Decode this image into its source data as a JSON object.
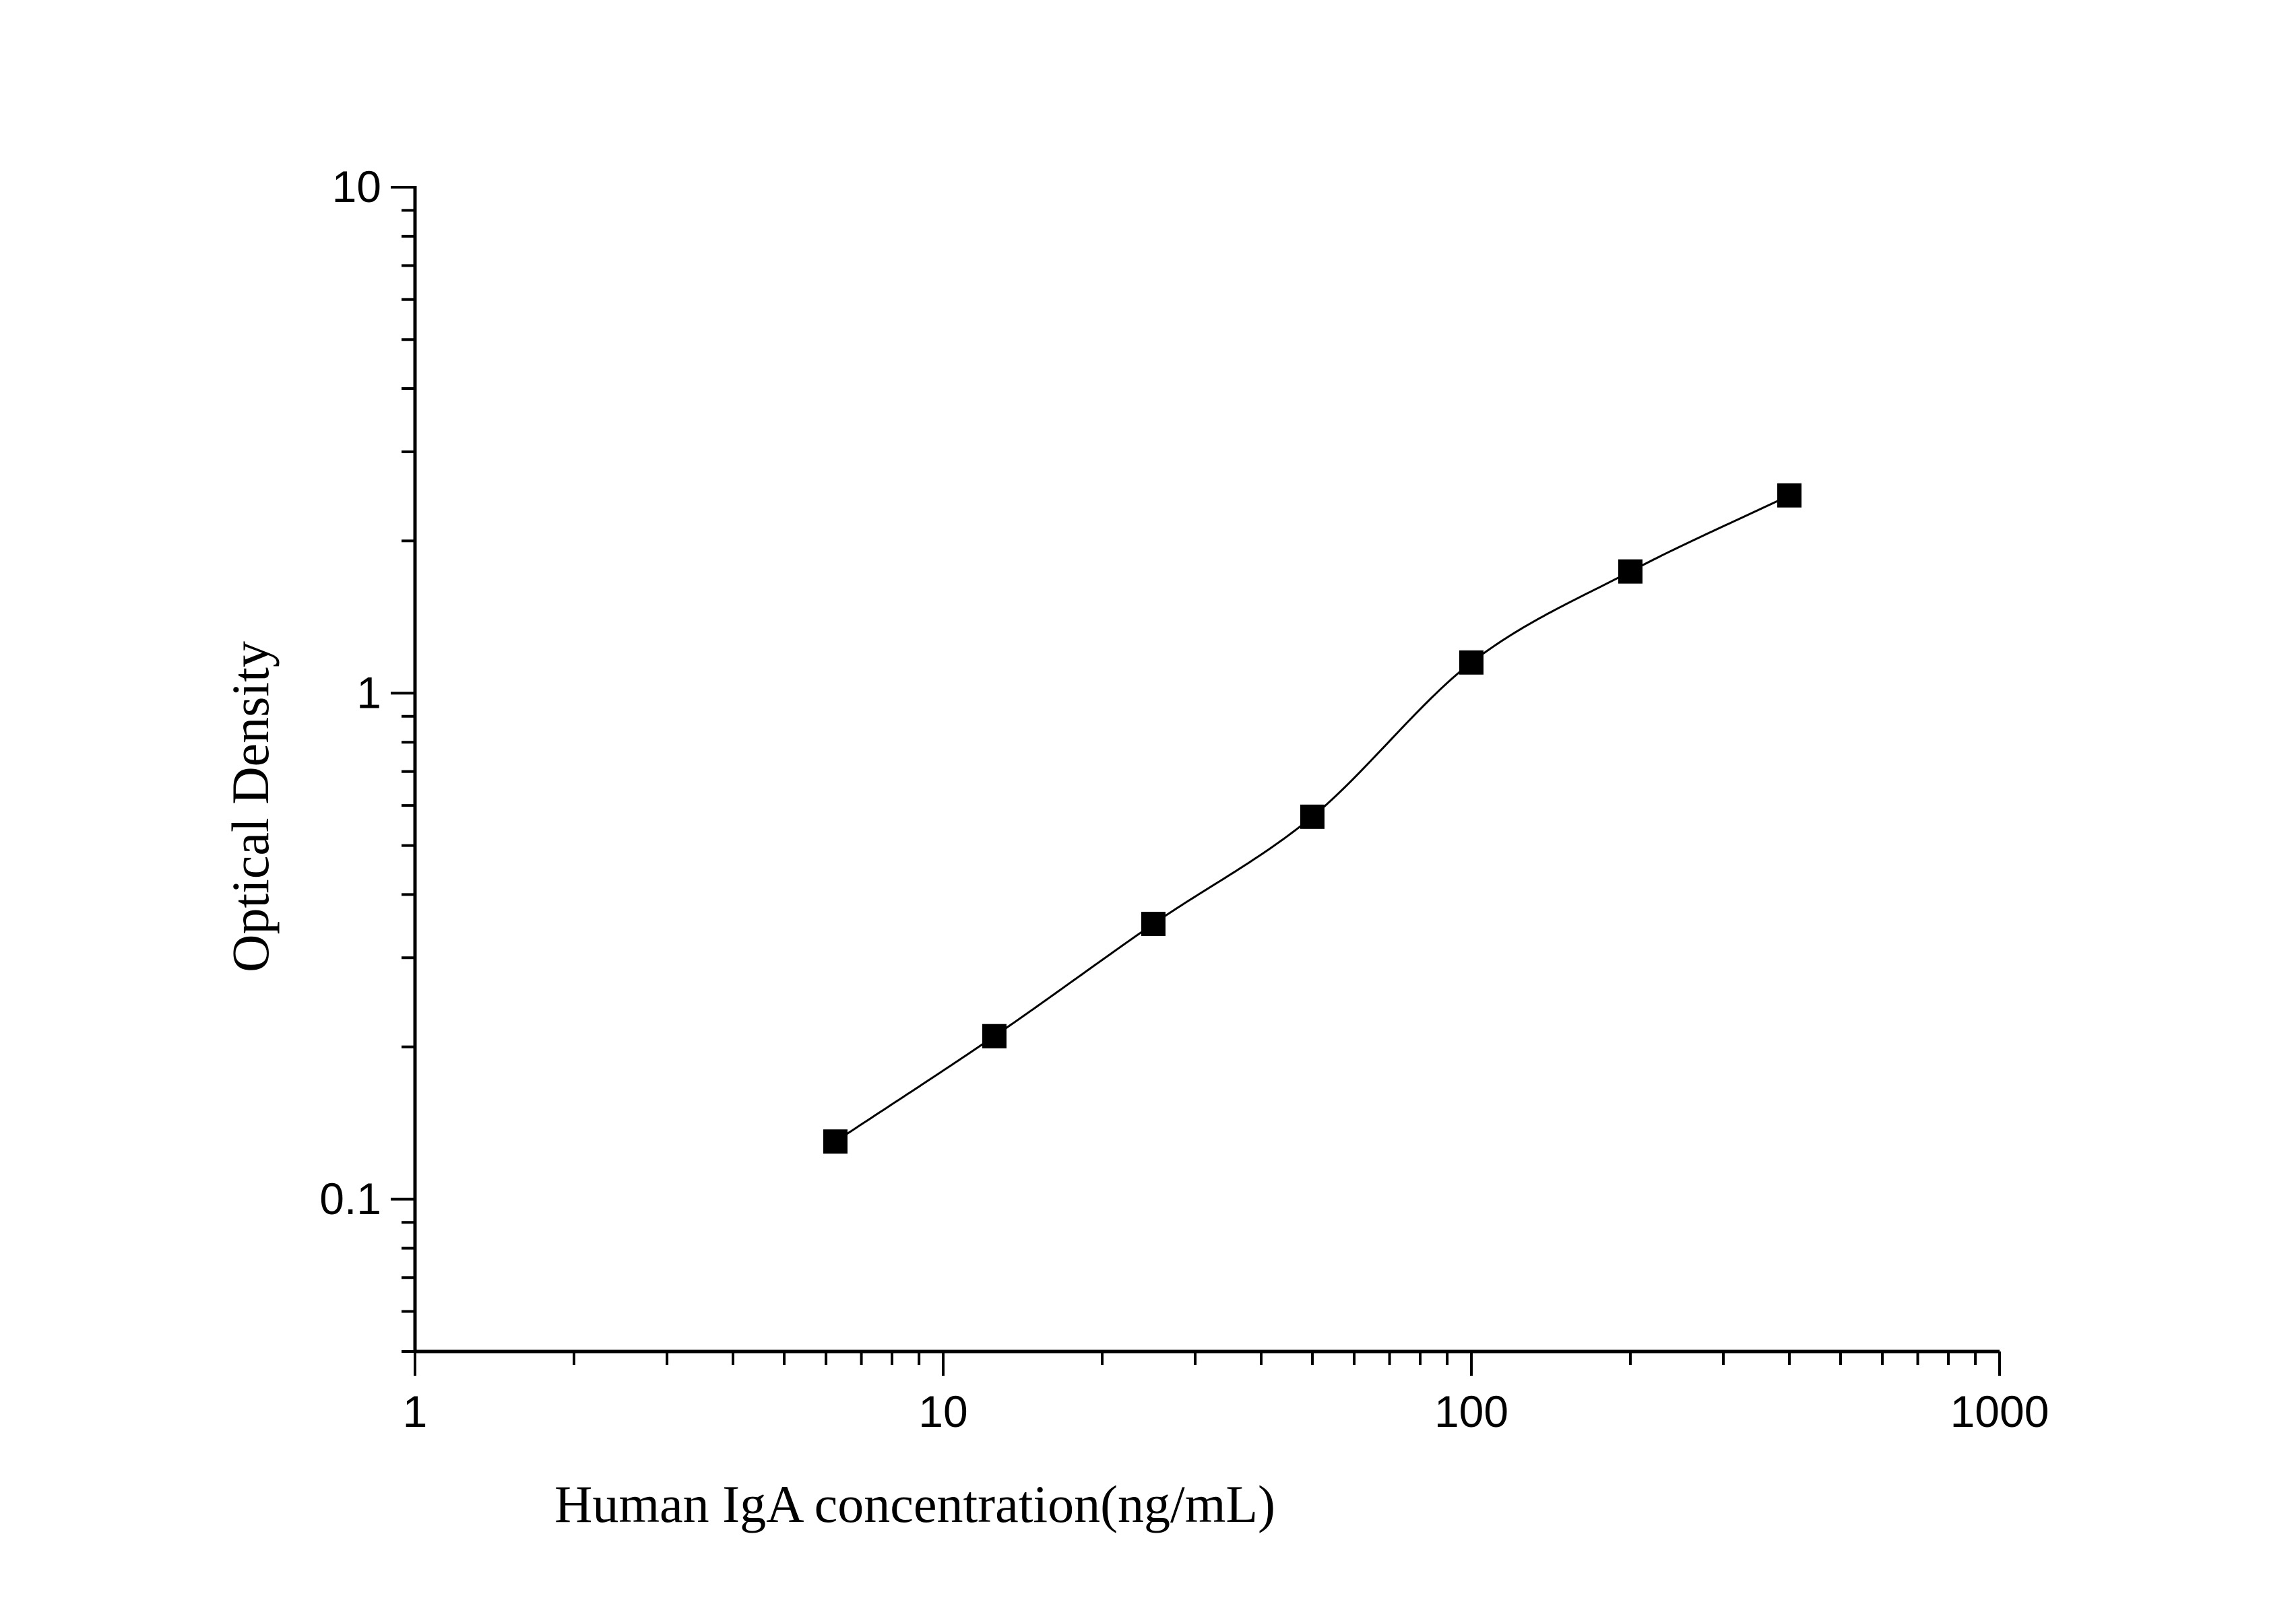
{
  "chart_data": {
    "type": "scatter",
    "title": "",
    "xlabel": "Human IgA concentration(ng/mL)",
    "ylabel": "Optical Density",
    "xscale": "log",
    "yscale": "log",
    "xlim": [
      1,
      1000
    ],
    "ylim": [
      0.05,
      10
    ],
    "x_ticks": [
      {
        "value": 1,
        "label": "1"
      },
      {
        "value": 10,
        "label": "10"
      },
      {
        "value": 100,
        "label": "100"
      },
      {
        "value": 1000,
        "label": "1000"
      }
    ],
    "y_ticks": [
      {
        "value": 0.1,
        "label": "0.1"
      },
      {
        "value": 1,
        "label": "1"
      },
      {
        "value": 10,
        "label": "10"
      }
    ],
    "grid": false,
    "legend": "none",
    "marker": "square",
    "fit_line": true,
    "series": [
      {
        "x": [
          6.25,
          12.5,
          25,
          50,
          100,
          200,
          400
        ],
        "y": [
          0.13,
          0.21,
          0.35,
          0.57,
          1.15,
          1.74,
          2.46
        ]
      }
    ],
    "colors": {
      "marker": "#000000",
      "line": "#000000",
      "axis": "#000000"
    }
  }
}
